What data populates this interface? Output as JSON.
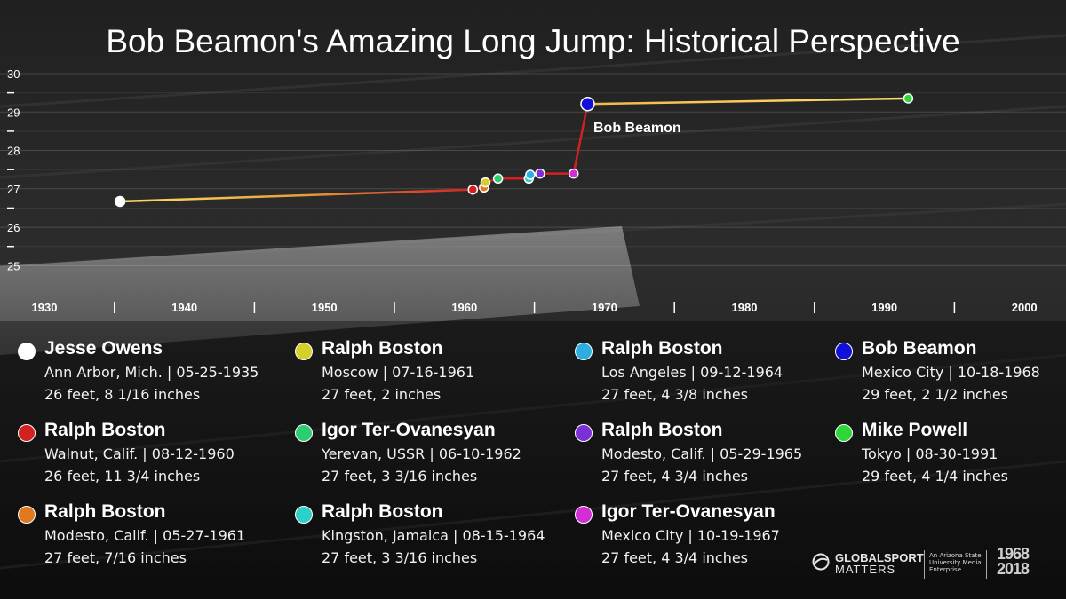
{
  "chart_data": {
    "type": "line",
    "title": "Bob Beamon's Amazing Long Jump: Historical Perspective",
    "y_ticks": [
      "30",
      "29",
      "28",
      "27",
      "26",
      "25"
    ],
    "ylim": [
      24.8,
      30
    ],
    "x_ticks": [
      "1930",
      "1940",
      "1950",
      "1960",
      "1970",
      "1980",
      "1990",
      "2000"
    ],
    "xlim": [
      1928,
      2002
    ],
    "grid": true,
    "annotation": "Bob Beamon",
    "points": [
      {
        "x": 1935.4,
        "y": 26.672,
        "color": "#ffffff",
        "record": "Jesse Owens"
      },
      {
        "x": 1960.6,
        "y": 26.979,
        "color": "#d32121",
        "record": "Ralph Boston"
      },
      {
        "x": 1961.4,
        "y": 27.036,
        "color": "#e07a1f",
        "record": "Ralph Boston"
      },
      {
        "x": 1961.5,
        "y": 27.167,
        "color": "#d4cf29",
        "record": "Ralph Boston"
      },
      {
        "x": 1962.4,
        "y": 27.266,
        "color": "#2ecc71",
        "record": "Igor Ter-Ovanesyan"
      },
      {
        "x": 1964.6,
        "y": 27.266,
        "color": "#2ed1c8",
        "record": "Ralph Boston"
      },
      {
        "x": 1964.7,
        "y": 27.365,
        "color": "#2eaee0",
        "record": "Ralph Boston"
      },
      {
        "x": 1965.4,
        "y": 27.396,
        "color": "#7b2fd6",
        "record": "Ralph Boston"
      },
      {
        "x": 1967.8,
        "y": 27.396,
        "color": "#d12ed6",
        "record": "Igor Ter-Ovanesyan"
      },
      {
        "x": 1968.8,
        "y": 29.208,
        "color": "#1010d8",
        "record": "Bob Beamon"
      },
      {
        "x": 1991.7,
        "y": 29.354,
        "color": "#2fd63a",
        "record": "Mike Powell"
      }
    ]
  },
  "legend": [
    {
      "name": "Jesse Owens",
      "place": "Ann Arbor, Mich. | 05-25-1935",
      "mark": "26 feet, 8 1/16 inches",
      "color": "#ffffff"
    },
    {
      "name": "Ralph Boston",
      "place": "Walnut, Calif. | 08-12-1960",
      "mark": "26 feet, 11 3/4 inches",
      "color": "#d32121"
    },
    {
      "name": "Ralph Boston",
      "place": "Modesto, Calif. | 05-27-1961",
      "mark": "27 feet, 7/16 inches",
      "color": "#e07a1f"
    },
    {
      "name": "Ralph Boston",
      "place": "Moscow | 07-16-1961",
      "mark": "27 feet, 2 inches",
      "color": "#d4cf29"
    },
    {
      "name": "Igor Ter-Ovanesyan",
      "place": "Yerevan, USSR | 06-10-1962",
      "mark": "27 feet, 3 3/16 inches",
      "color": "#2ecc71"
    },
    {
      "name": "Ralph Boston",
      "place": "Kingston, Jamaica | 08-15-1964",
      "mark": "27 feet, 3 3/16 inches",
      "color": "#2ed1c8"
    },
    {
      "name": "Ralph Boston",
      "place": "Los Angeles | 09-12-1964",
      "mark": "27 feet, 4 3/8 inches",
      "color": "#2eaee0"
    },
    {
      "name": "Ralph Boston",
      "place": "Modesto, Calif. | 05-29-1965",
      "mark": "27 feet, 4 3/4 inches",
      "color": "#7b2fd6"
    },
    {
      "name": "Igor Ter-Ovanesyan",
      "place": "Mexico City | 10-19-1967",
      "mark": "27 feet, 4 3/4 inches",
      "color": "#d12ed6"
    },
    {
      "name": "Bob Beamon",
      "place": "Mexico City | 10-18-1968",
      "mark": "29 feet, 2 1/2 inches",
      "color": "#1010d8"
    },
    {
      "name": "Mike Powell",
      "place": "Tokyo | 08-30-1991",
      "mark": "29 feet, 4 1/4 inches",
      "color": "#2fd63a"
    }
  ],
  "branding": {
    "logo_name": "GLOBALSPORT",
    "logo_sub": "MATTERS",
    "affiliation": "An Arizona State University Media Enterprise",
    "years": "1968 2018"
  }
}
